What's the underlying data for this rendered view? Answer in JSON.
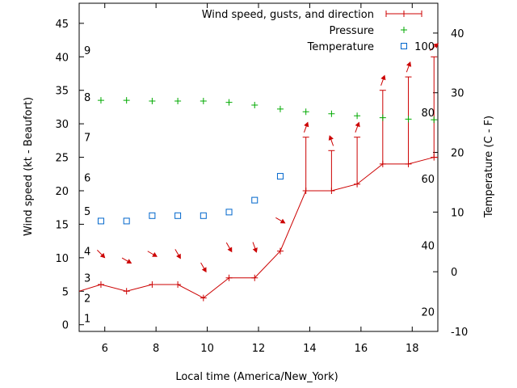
{
  "chart_data": {
    "type": "line",
    "xlabel": "Local time (America/New_York)",
    "ylabel": "Wind speed (kt - Beaufort)",
    "y2label": "Temperature (C - F)",
    "xlim": [
      5,
      19
    ],
    "ylim": [
      -1,
      48
    ],
    "y2lim": [
      -10,
      45
    ],
    "x_ticks": [
      6,
      8,
      10,
      12,
      14,
      16,
      18
    ],
    "y_ticks": [
      0,
      5,
      10,
      15,
      20,
      25,
      30,
      35,
      40,
      45
    ],
    "y2_ticks": [
      -10,
      0,
      10,
      20,
      30,
      40
    ],
    "beaufort_labels": [
      {
        "label": "1",
        "kt": 1
      },
      {
        "label": "2",
        "kt": 4
      },
      {
        "label": "3",
        "kt": 7
      },
      {
        "label": "4",
        "kt": 11
      },
      {
        "label": "5",
        "kt": 17
      },
      {
        "label": "6",
        "kt": 22
      },
      {
        "label": "7",
        "kt": 28
      },
      {
        "label": "8",
        "kt": 34
      },
      {
        "label": "9",
        "kt": 41
      }
    ],
    "fahrenheit_labels": [
      {
        "label": "20",
        "c": -6.7
      },
      {
        "label": "40",
        "c": 4.4
      },
      {
        "label": "60",
        "c": 15.6
      },
      {
        "label": "80",
        "c": 26.7
      },
      {
        "label": "100",
        "c": 37.8
      }
    ],
    "legend_position": "top-right",
    "series": [
      {
        "name": "Wind speed, gusts, and direction",
        "color": "#cc0000",
        "x": [
          5,
          5.85,
          6.85,
          7.85,
          8.85,
          9.85,
          10.85,
          11.85,
          12.85,
          13.85,
          14.85,
          15.85,
          16.85,
          17.85,
          18.85,
          19
        ],
        "speed": [
          5,
          6,
          5,
          6,
          6,
          4,
          7,
          7,
          11,
          20,
          20,
          21,
          24,
          24,
          25,
          25
        ],
        "gusts": [
          null,
          null,
          null,
          null,
          null,
          null,
          null,
          null,
          null,
          28,
          26,
          28,
          35,
          37,
          40,
          null
        ],
        "direction_deg": [
          null,
          315,
          300,
          300,
          330,
          330,
          330,
          340,
          300,
          200,
          160,
          200,
          200,
          200,
          230,
          null
        ]
      },
      {
        "name": "Pressure",
        "color": "#00aa00",
        "x": [
          5.85,
          6.85,
          7.85,
          8.85,
          9.85,
          10.85,
          11.85,
          12.85,
          13.85,
          14.85,
          15.85,
          16.85,
          17.85,
          18.85
        ],
        "values": [
          33.5,
          33.5,
          33.4,
          33.4,
          33.4,
          33.2,
          32.8,
          32.2,
          31.8,
          31.5,
          31.2,
          30.9,
          30.7,
          30.6
        ]
      },
      {
        "name": "Temperature",
        "color": "#0066cc",
        "x": [
          5.85,
          6.85,
          7.85,
          8.85,
          9.85,
          10.85,
          11.85,
          12.85
        ],
        "values_c": [
          8.5,
          8.5,
          9.4,
          9.4,
          9.4,
          10.0,
          12.0,
          16.0
        ]
      }
    ]
  }
}
